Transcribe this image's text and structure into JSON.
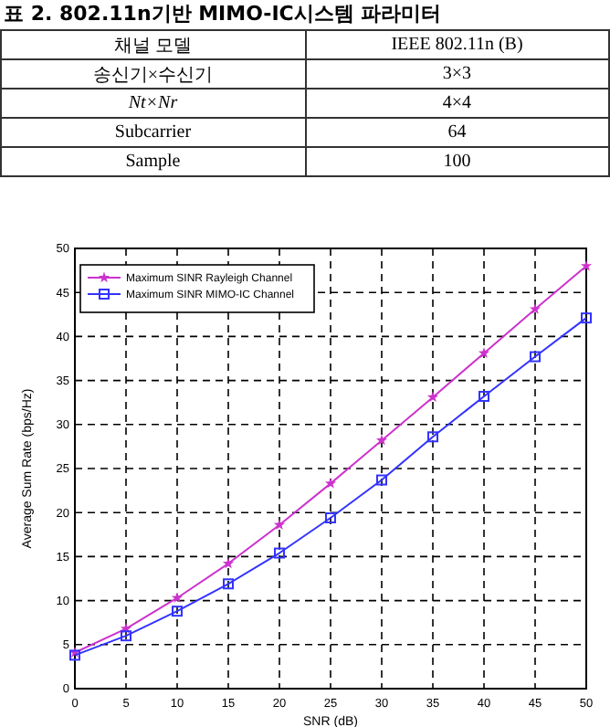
{
  "chart_data": [
    {
      "type": "other",
      "title": "표 2. 802.11n기반 MIMO-IC시스템 파라미터",
      "annotations": [
        "채널 모델",
        "IEEE 802.11n (B)",
        "송신기×수신기",
        "3×3",
        "Nt×Nr",
        "4×4",
        "Subcarrier",
        "64",
        "Sample",
        "100"
      ]
    },
    {
      "type": "line",
      "xlabel": "SNR (dB)",
      "ylabel": "Average Sum Rate (bps/Hz)",
      "x": [
        0,
        5,
        10,
        15,
        20,
        25,
        30,
        35,
        40,
        45,
        50
      ],
      "series": [
        {
          "name": "Maximum SINR Rayleigh Channel",
          "color": "#cc33cc",
          "marker": "star",
          "values": [
            4.1,
            6.8,
            10.3,
            14.2,
            18.6,
            23.3,
            28.2,
            33.1,
            38.1,
            43.1,
            48.0
          ]
        },
        {
          "name": "Maximum SINR MIMO-IC Channel",
          "color": "#3333ff",
          "marker": "square",
          "values": [
            3.8,
            6.0,
            8.8,
            11.9,
            15.4,
            19.4,
            23.7,
            28.6,
            33.2,
            37.7,
            42.1
          ]
        }
      ],
      "xlim": [
        0,
        50
      ],
      "xticks": [
        0,
        5,
        10,
        15,
        20,
        25,
        30,
        35,
        40,
        45,
        50
      ],
      "ylim": [
        0,
        50
      ],
      "yticks": [
        0,
        5,
        10,
        15,
        20,
        25,
        30,
        35,
        40,
        45,
        50
      ],
      "grid": true,
      "legend": "top left",
      "line_style": "solid"
    }
  ]
}
